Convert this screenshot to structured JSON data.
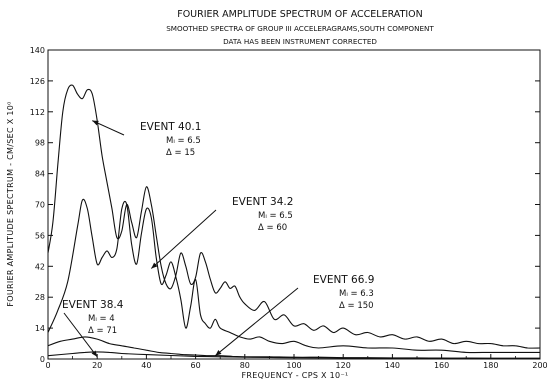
{
  "chart_data": {
    "type": "line",
    "title": "FOURIER AMPLITUDE SPECTRUM OF ACCELERATION",
    "subtitle": "SMOOTHED SPECTRA OF GROUP III ACCELERAGRAMS,SOUTH COMPONENT",
    "note": "DATA HAS BEEN INSTRUMENT CORRECTED",
    "xlabel": "FREQUENCY - CPS X 10⁻¹",
    "ylabel": "FOURIER AMPLITUDE SPECTRUM - CM/SEC X 10⁰",
    "xlim": [
      0,
      200
    ],
    "ylim": [
      0,
      140
    ],
    "xticks": [
      0,
      20,
      40,
      60,
      80,
      100,
      120,
      140,
      160,
      180,
      200
    ],
    "yticks": [
      0,
      14,
      28,
      42,
      56,
      70,
      84,
      98,
      112,
      126,
      140
    ],
    "grid": false,
    "series": [
      {
        "name": "EVENT 40.1",
        "x": [
          0,
          2,
          4,
          6,
          8,
          10,
          12,
          14,
          16,
          18,
          20,
          22,
          24,
          26,
          28,
          30,
          32,
          34,
          36,
          38,
          40,
          42,
          44,
          46,
          48,
          50,
          52,
          54,
          56,
          58,
          60,
          62,
          64,
          66,
          68,
          70,
          72,
          74,
          76,
          78,
          80,
          84,
          88,
          92,
          96,
          100,
          104,
          108,
          112,
          116,
          120,
          125,
          130,
          135,
          140,
          145,
          150,
          155,
          160,
          165,
          170,
          175,
          180,
          185,
          190,
          195,
          200
        ],
        "y": [
          48,
          62,
          88,
          112,
          122,
          124,
          120,
          118,
          122,
          120,
          108,
          92,
          80,
          68,
          55,
          58,
          70,
          62,
          55,
          67,
          78,
          70,
          56,
          42,
          34,
          32,
          38,
          48,
          42,
          34,
          37,
          48,
          44,
          36,
          30,
          32,
          35,
          32,
          33,
          28,
          25,
          22,
          26,
          18,
          20,
          15,
          16,
          13,
          15,
          12,
          14,
          11,
          12,
          10,
          11,
          9,
          10,
          8,
          9,
          7,
          8,
          7,
          7,
          6,
          6,
          5,
          5
        ]
      },
      {
        "name": "EVENT 34.2",
        "x": [
          0,
          4,
          8,
          12,
          14,
          16,
          18,
          20,
          22,
          24,
          26,
          28,
          30,
          32,
          34,
          36,
          38,
          40,
          42,
          44,
          46,
          48,
          50,
          52,
          54,
          56,
          58,
          60,
          62,
          64,
          66,
          68,
          70,
          74,
          78,
          82,
          86,
          90,
          95,
          100,
          105,
          110,
          120,
          130,
          140,
          150,
          160,
          170,
          180,
          190,
          200
        ],
        "y": [
          12,
          22,
          35,
          60,
          72,
          68,
          55,
          43,
          46,
          49,
          46,
          50,
          68,
          70,
          52,
          43,
          57,
          68,
          64,
          46,
          34,
          38,
          44,
          37,
          27,
          14,
          24,
          36,
          20,
          16,
          14,
          18,
          14,
          12,
          10,
          9,
          10,
          8,
          7,
          8,
          6,
          5,
          6,
          5,
          5,
          4,
          4,
          3,
          3,
          3,
          3
        ]
      },
      {
        "name": "EVENT 66.9",
        "x": [
          0,
          5,
          10,
          15,
          20,
          25,
          30,
          35,
          40,
          45,
          50,
          55,
          60,
          65,
          70,
          75,
          80,
          90,
          100,
          110,
          120,
          130,
          140,
          150,
          160,
          170,
          180,
          190,
          200
        ],
        "y": [
          6,
          8,
          9,
          10,
          9,
          7,
          6,
          5,
          4,
          3,
          2.5,
          2,
          1.8,
          1.5,
          1.5,
          1.2,
          1,
          1,
          0.8,
          0.8,
          0.6,
          0.6,
          0.5,
          0.5,
          0.4,
          0.4,
          0.3,
          0.3,
          0.3
        ]
      },
      {
        "name": "EVENT 38.4",
        "x": [
          0,
          10,
          15,
          20,
          25,
          30,
          40,
          50,
          60,
          70,
          80,
          90,
          100,
          120,
          140,
          160,
          180,
          200
        ],
        "y": [
          1.5,
          2.5,
          3,
          3.2,
          3,
          2.5,
          2,
          1.6,
          1.2,
          1,
          0.8,
          0.7,
          0.6,
          0.5,
          0.4,
          0.3,
          0.3,
          0.3
        ]
      }
    ],
    "annotations": [
      {
        "series": "EVENT 40.1",
        "lines": [
          "EVENT 40.1",
          "Mₗ = 6.5",
          "Δ = 15"
        ],
        "arrow_to": [
          18,
          108
        ]
      },
      {
        "series": "EVENT 34.2",
        "lines": [
          "EVENT 34.2",
          "Mₗ = 6.5",
          "Δ = 60"
        ],
        "arrow_to": [
          42,
          41
        ]
      },
      {
        "series": "EVENT 66.9",
        "lines": [
          "EVENT 66.9",
          "Mₗ = 6.3",
          "Δ = 150"
        ],
        "arrow_to": [
          68,
          1.5
        ]
      },
      {
        "series": "EVENT 38.4",
        "lines": [
          "EVENT 38.4",
          "Mₗ = 4",
          "Δ = 71"
        ],
        "arrow_to": [
          20,
          1
        ]
      }
    ]
  }
}
